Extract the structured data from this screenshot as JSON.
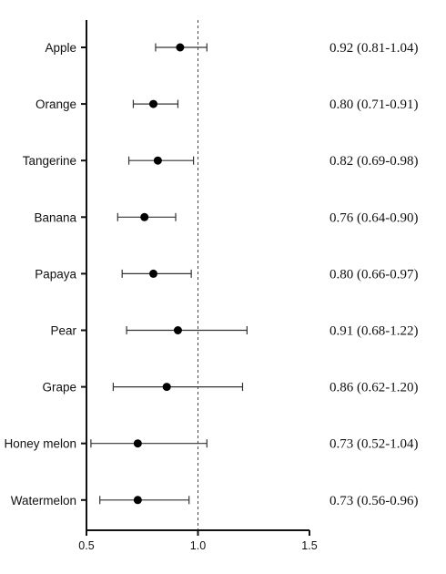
{
  "chart_data": {
    "type": "forest",
    "x_ticks": [
      0.5,
      1.0,
      1.5
    ],
    "x_tick_labels": [
      "0.5",
      "1.0",
      "1.5"
    ],
    "xlim": [
      0.5,
      1.5
    ],
    "reference_line": 1.0,
    "rows": [
      {
        "label": "Apple",
        "estimate": 0.92,
        "lower": 0.81,
        "upper": 1.04,
        "text": "0.92 (0.81-1.04)"
      },
      {
        "label": "Orange",
        "estimate": 0.8,
        "lower": 0.71,
        "upper": 0.91,
        "text": "0.80 (0.71-0.91)"
      },
      {
        "label": "Tangerine",
        "estimate": 0.82,
        "lower": 0.69,
        "upper": 0.98,
        "text": "0.82 (0.69-0.98)"
      },
      {
        "label": "Banana",
        "estimate": 0.76,
        "lower": 0.64,
        "upper": 0.9,
        "text": "0.76 (0.64-0.90)"
      },
      {
        "label": "Papaya",
        "estimate": 0.8,
        "lower": 0.66,
        "upper": 0.97,
        "text": "0.80 (0.66-0.97)"
      },
      {
        "label": "Pear",
        "estimate": 0.91,
        "lower": 0.68,
        "upper": 1.22,
        "text": "0.91 (0.68-1.22)"
      },
      {
        "label": "Grape",
        "estimate": 0.86,
        "lower": 0.62,
        "upper": 1.2,
        "text": "0.86 (0.62-1.20)"
      },
      {
        "label": "Honey melon",
        "estimate": 0.73,
        "lower": 0.52,
        "upper": 1.04,
        "text": "0.73 (0.52-1.04)"
      },
      {
        "label": "Watermelon",
        "estimate": 0.73,
        "lower": 0.56,
        "upper": 0.96,
        "text": "0.73 (0.56-0.96)"
      }
    ],
    "colors": {
      "axis": "#111111",
      "ci_line": "#333333",
      "point": "#000000",
      "reference_line": "#444444"
    }
  }
}
